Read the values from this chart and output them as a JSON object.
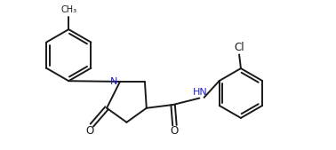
{
  "background_color": "#ffffff",
  "line_color": "#1a1a1a",
  "text_color": "#1a1a1a",
  "N_color": "#2020cc",
  "atom_labels": {
    "N": "N",
    "O1": "O",
    "O2": "O",
    "NH": "HN",
    "Cl": "Cl"
  },
  "figsize": [
    3.78,
    1.69
  ],
  "dpi": 100,
  "xlim": [
    0,
    10
  ],
  "ylim": [
    0,
    4.5
  ]
}
